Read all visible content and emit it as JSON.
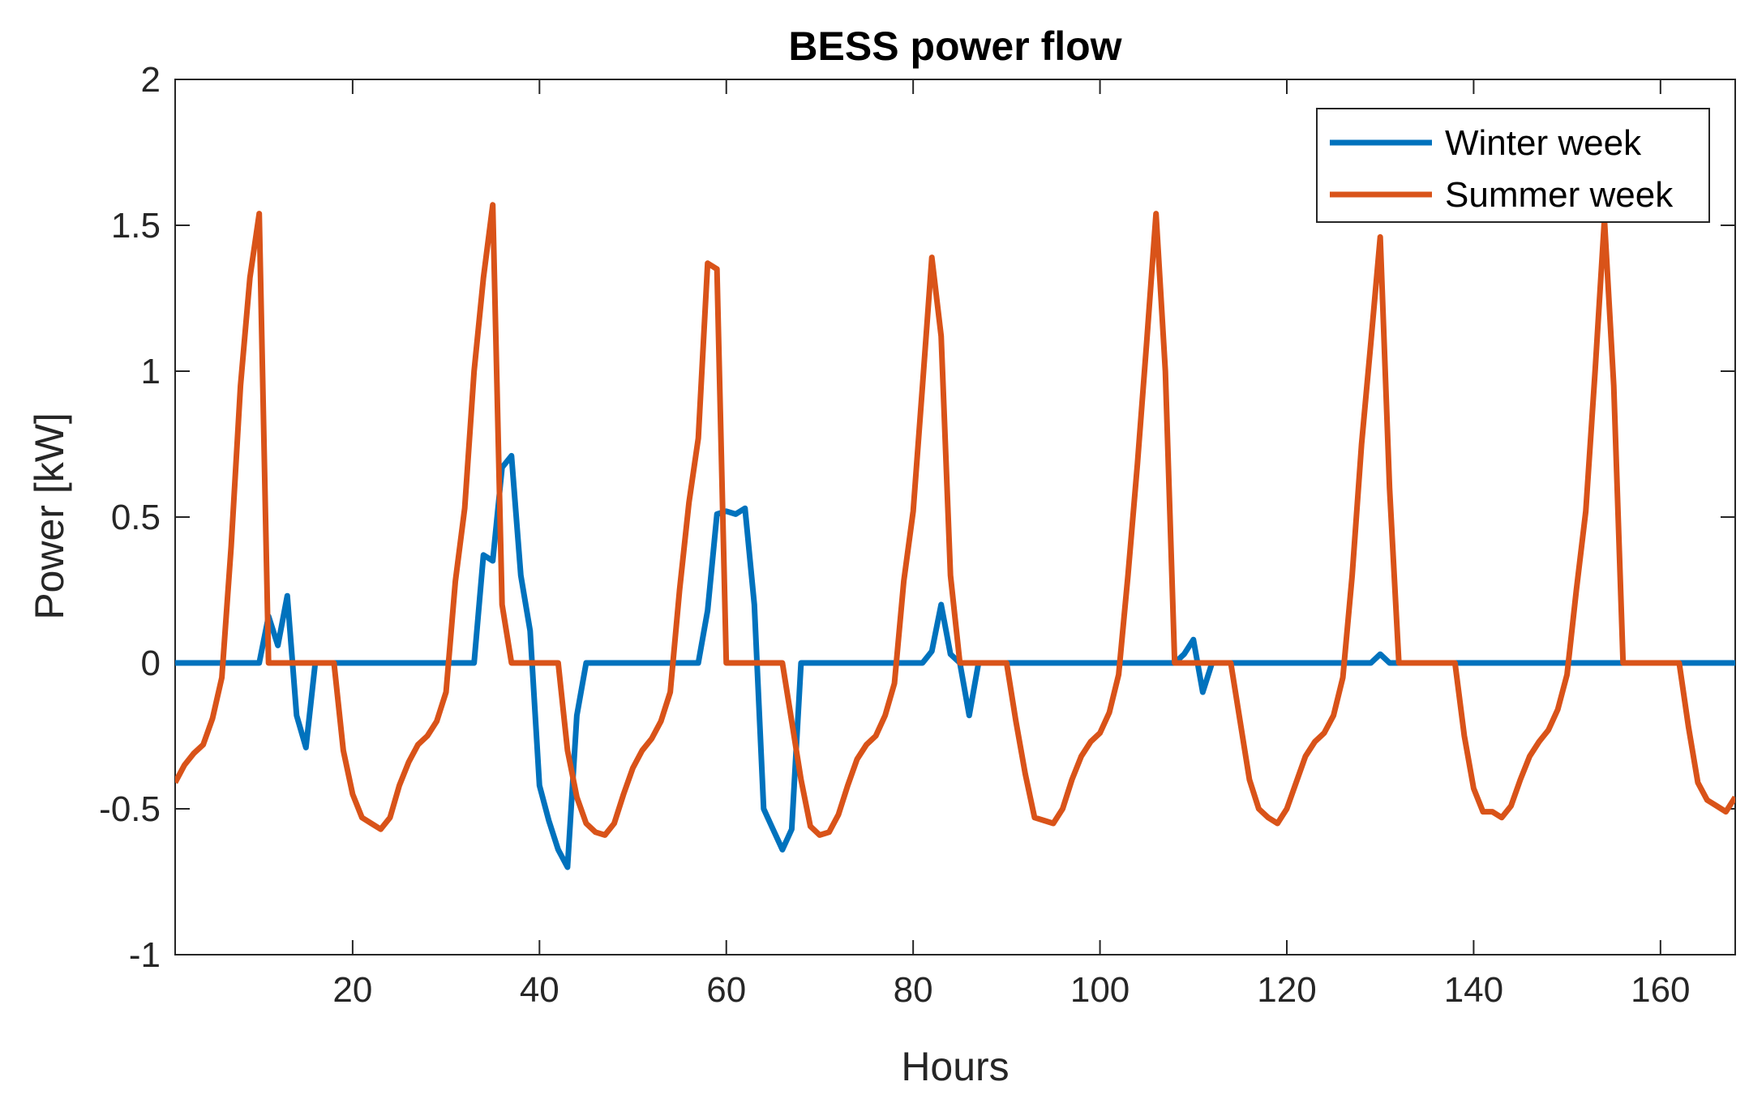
{
  "chart_data": {
    "type": "line",
    "title": "BESS power flow",
    "xlabel": "Hours",
    "ylabel": "Power [kW]",
    "xlim": [
      1,
      168
    ],
    "ylim": [
      -1,
      2
    ],
    "xticks": [
      20,
      40,
      60,
      80,
      100,
      120,
      140,
      160
    ],
    "yticks": [
      -1,
      -0.5,
      0,
      0.5,
      1,
      1.5,
      2
    ],
    "ytick_labels": [
      "-1",
      "-0.5",
      "0",
      "0.5",
      "1",
      "1.5",
      "2"
    ],
    "grid": false,
    "legend": "top-right",
    "series": [
      {
        "name": "Winter week",
        "color": "#0072BD",
        "points": [
          [
            1,
            0
          ],
          [
            10,
            0
          ],
          [
            11,
            0.16
          ],
          [
            12,
            0.06
          ],
          [
            13,
            0.23
          ],
          [
            14,
            -0.18
          ],
          [
            15,
            -0.29
          ],
          [
            16,
            0
          ],
          [
            33,
            0
          ],
          [
            34,
            0.37
          ],
          [
            35,
            0.35
          ],
          [
            36,
            0.67
          ],
          [
            37,
            0.71
          ],
          [
            38,
            0.3
          ],
          [
            39,
            0.11
          ],
          [
            40,
            -0.42
          ],
          [
            41,
            -0.54
          ],
          [
            42,
            -0.64
          ],
          [
            43,
            -0.7
          ],
          [
            44,
            -0.18
          ],
          [
            45,
            0
          ],
          [
            57,
            0
          ],
          [
            58,
            0.18
          ],
          [
            59,
            0.51
          ],
          [
            60,
            0.52
          ],
          [
            61,
            0.51
          ],
          [
            62,
            0.53
          ],
          [
            63,
            0.2
          ],
          [
            64,
            -0.5
          ],
          [
            65,
            -0.57
          ],
          [
            66,
            -0.64
          ],
          [
            67,
            -0.57
          ],
          [
            68,
            0
          ],
          [
            81,
            0
          ],
          [
            82,
            0.04
          ],
          [
            83,
            0.2
          ],
          [
            84,
            0.03
          ],
          [
            85,
            0
          ],
          [
            86,
            -0.18
          ],
          [
            87,
            0
          ],
          [
            108,
            0
          ],
          [
            109,
            0.03
          ],
          [
            110,
            0.08
          ],
          [
            111,
            -0.1
          ],
          [
            112,
            0
          ],
          [
            129,
            0
          ],
          [
            130,
            0.03
          ],
          [
            131,
            0
          ],
          [
            168,
            0
          ]
        ]
      },
      {
        "name": "Summer week",
        "color": "#D95319",
        "points": [
          [
            1,
            -0.41
          ],
          [
            2,
            -0.35
          ],
          [
            3,
            -0.31
          ],
          [
            4,
            -0.28
          ],
          [
            5,
            -0.19
          ],
          [
            6,
            -0.05
          ],
          [
            7,
            0.4
          ],
          [
            8,
            0.95
          ],
          [
            9,
            1.32
          ],
          [
            10,
            1.54
          ],
          [
            11,
            0
          ],
          [
            18,
            0
          ],
          [
            19,
            -0.3
          ],
          [
            20,
            -0.45
          ],
          [
            21,
            -0.53
          ],
          [
            22,
            -0.55
          ],
          [
            23,
            -0.57
          ],
          [
            24,
            -0.53
          ],
          [
            25,
            -0.42
          ],
          [
            26,
            -0.34
          ],
          [
            27,
            -0.28
          ],
          [
            28,
            -0.25
          ],
          [
            29,
            -0.2
          ],
          [
            30,
            -0.1
          ],
          [
            31,
            0.28
          ],
          [
            32,
            0.53
          ],
          [
            33,
            1.0
          ],
          [
            34,
            1.32
          ],
          [
            35,
            1.57
          ],
          [
            36,
            0.2
          ],
          [
            37,
            0
          ],
          [
            42,
            0
          ],
          [
            43,
            -0.3
          ],
          [
            44,
            -0.46
          ],
          [
            45,
            -0.55
          ],
          [
            46,
            -0.58
          ],
          [
            47,
            -0.59
          ],
          [
            48,
            -0.55
          ],
          [
            49,
            -0.45
          ],
          [
            50,
            -0.36
          ],
          [
            51,
            -0.3
          ],
          [
            52,
            -0.26
          ],
          [
            53,
            -0.2
          ],
          [
            54,
            -0.1
          ],
          [
            55,
            0.25
          ],
          [
            56,
            0.55
          ],
          [
            57,
            0.77
          ],
          [
            58,
            1.37
          ],
          [
            59,
            1.35
          ],
          [
            60,
            0
          ],
          [
            66,
            0
          ],
          [
            67,
            -0.2
          ],
          [
            68,
            -0.4
          ],
          [
            69,
            -0.56
          ],
          [
            70,
            -0.59
          ],
          [
            71,
            -0.58
          ],
          [
            72,
            -0.52
          ],
          [
            73,
            -0.42
          ],
          [
            74,
            -0.33
          ],
          [
            75,
            -0.28
          ],
          [
            76,
            -0.25
          ],
          [
            77,
            -0.18
          ],
          [
            78,
            -0.07
          ],
          [
            79,
            0.28
          ],
          [
            80,
            0.52
          ],
          [
            81,
            0.95
          ],
          [
            82,
            1.39
          ],
          [
            83,
            1.12
          ],
          [
            84,
            0.3
          ],
          [
            85,
            0
          ],
          [
            90,
            0
          ],
          [
            91,
            -0.2
          ],
          [
            92,
            -0.38
          ],
          [
            93,
            -0.53
          ],
          [
            94,
            -0.54
          ],
          [
            95,
            -0.55
          ],
          [
            96,
            -0.5
          ],
          [
            97,
            -0.4
          ],
          [
            98,
            -0.32
          ],
          [
            99,
            -0.27
          ],
          [
            100,
            -0.24
          ],
          [
            101,
            -0.17
          ],
          [
            102,
            -0.04
          ],
          [
            103,
            0.3
          ],
          [
            104,
            0.68
          ],
          [
            105,
            1.1
          ],
          [
            106,
            1.54
          ],
          [
            107,
            1.0
          ],
          [
            108,
            0
          ],
          [
            114,
            0
          ],
          [
            115,
            -0.2
          ],
          [
            116,
            -0.4
          ],
          [
            117,
            -0.5
          ],
          [
            118,
            -0.53
          ],
          [
            119,
            -0.55
          ],
          [
            120,
            -0.5
          ],
          [
            121,
            -0.41
          ],
          [
            122,
            -0.32
          ],
          [
            123,
            -0.27
          ],
          [
            124,
            -0.24
          ],
          [
            125,
            -0.18
          ],
          [
            126,
            -0.05
          ],
          [
            127,
            0.3
          ],
          [
            128,
            0.75
          ],
          [
            129,
            1.1
          ],
          [
            130,
            1.46
          ],
          [
            131,
            0.6
          ],
          [
            132,
            0
          ],
          [
            138,
            0
          ],
          [
            139,
            -0.25
          ],
          [
            140,
            -0.43
          ],
          [
            141,
            -0.51
          ],
          [
            142,
            -0.51
          ],
          [
            143,
            -0.53
          ],
          [
            144,
            -0.49
          ],
          [
            145,
            -0.4
          ],
          [
            146,
            -0.32
          ],
          [
            147,
            -0.27
          ],
          [
            148,
            -0.23
          ],
          [
            149,
            -0.16
          ],
          [
            150,
            -0.04
          ],
          [
            151,
            0.25
          ],
          [
            152,
            0.52
          ],
          [
            153,
            1.0
          ],
          [
            154,
            1.52
          ],
          [
            155,
            0.95
          ],
          [
            156,
            0
          ],
          [
            162,
            0
          ],
          [
            163,
            -0.22
          ],
          [
            164,
            -0.41
          ],
          [
            165,
            -0.47
          ],
          [
            166,
            -0.49
          ],
          [
            167,
            -0.51
          ],
          [
            168,
            -0.46
          ]
        ]
      }
    ]
  }
}
